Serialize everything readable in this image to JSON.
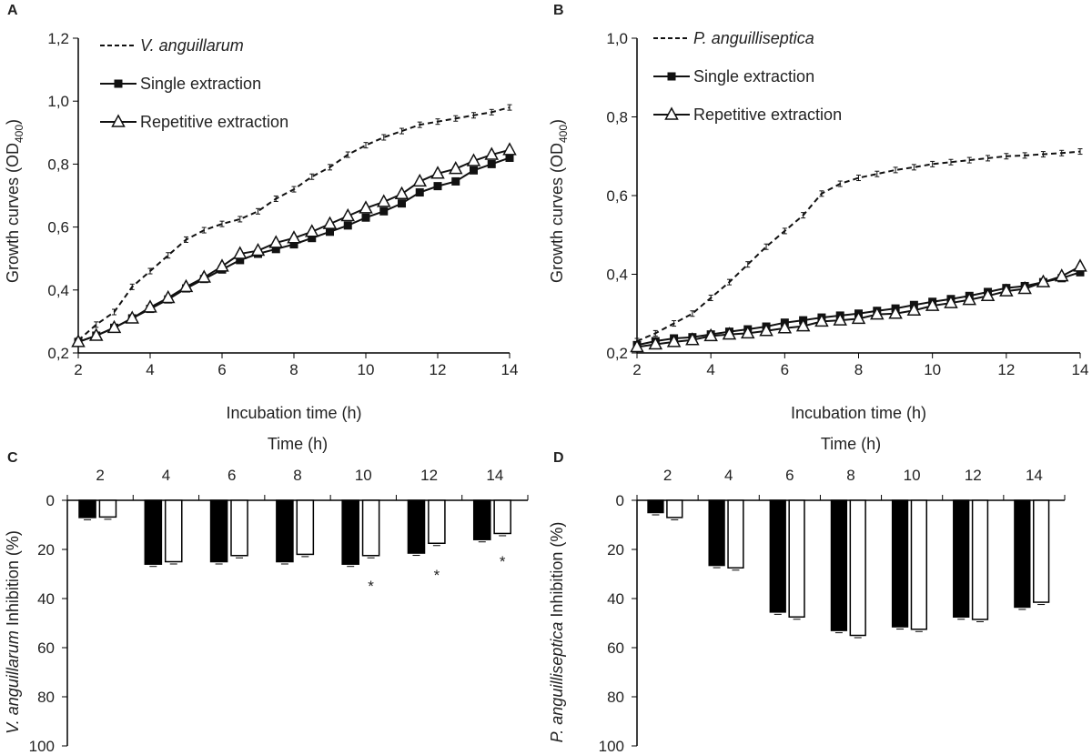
{
  "chart_data": [
    {
      "panel": "A",
      "type": "line",
      "xlabel": "Incubation time (h)",
      "ylabel": "Growth curves (OD",
      "ylabel_sub": "400",
      "ylabel_end": ")",
      "xlim": [
        2,
        14
      ],
      "ylim": [
        0.2,
        1.2
      ],
      "xticks": [
        "2",
        "4",
        "6",
        "8",
        "10",
        "12",
        "14"
      ],
      "yticks": [
        "0,2",
        "0,4",
        "0,6",
        "0,8",
        "1,0",
        "1,2"
      ],
      "legend_position": "top-left",
      "x": [
        2,
        2.5,
        3,
        3.5,
        4,
        4.5,
        5,
        5.5,
        6,
        6.5,
        7,
        7.5,
        8,
        8.5,
        9,
        9.5,
        10,
        10.5,
        11,
        11.5,
        12,
        12.5,
        13,
        13.5,
        14
      ],
      "series": [
        {
          "name": "V. anguillarum",
          "style": "dashed",
          "values": [
            0.24,
            0.29,
            0.33,
            0.41,
            0.46,
            0.51,
            0.56,
            0.59,
            0.61,
            0.625,
            0.65,
            0.69,
            0.72,
            0.76,
            0.79,
            0.83,
            0.86,
            0.885,
            0.905,
            0.925,
            0.935,
            0.945,
            0.955,
            0.965,
            0.98
          ]
        },
        {
          "name": "Single extraction",
          "style": "square",
          "values": [
            0.235,
            0.255,
            0.28,
            0.31,
            0.34,
            0.37,
            0.405,
            0.435,
            0.465,
            0.495,
            0.515,
            0.53,
            0.545,
            0.565,
            0.585,
            0.605,
            0.63,
            0.65,
            0.675,
            0.71,
            0.73,
            0.745,
            0.78,
            0.8,
            0.82
          ]
        },
        {
          "name": "Repetitive extraction",
          "style": "triangle",
          "values": [
            0.235,
            0.255,
            0.28,
            0.31,
            0.345,
            0.375,
            0.41,
            0.44,
            0.475,
            0.515,
            0.525,
            0.55,
            0.565,
            0.585,
            0.61,
            0.635,
            0.66,
            0.68,
            0.705,
            0.745,
            0.77,
            0.785,
            0.81,
            0.83,
            0.845
          ]
        }
      ]
    },
    {
      "panel": "B",
      "type": "line",
      "xlabel": "Incubation time (h)",
      "ylabel": "Growth curves (OD",
      "ylabel_sub": "400",
      "ylabel_end": ")",
      "xlim": [
        2,
        14
      ],
      "ylim": [
        0.2,
        1.0
      ],
      "xticks": [
        "2",
        "4",
        "6",
        "8",
        "10",
        "12",
        "14"
      ],
      "yticks": [
        "0,2",
        "0,4",
        "0,6",
        "0,8",
        "1,0"
      ],
      "legend_position": "top-left",
      "x": [
        2,
        2.5,
        3,
        3.5,
        4,
        4.5,
        5,
        5.5,
        6,
        6.5,
        7,
        7.5,
        8,
        8.5,
        9,
        9.5,
        10,
        10.5,
        11,
        11.5,
        12,
        12.5,
        13,
        13.5,
        14
      ],
      "series": [
        {
          "name": "P. anguilliseptica",
          "style": "dashed",
          "values": [
            0.23,
            0.25,
            0.275,
            0.3,
            0.34,
            0.38,
            0.425,
            0.47,
            0.51,
            0.55,
            0.605,
            0.63,
            0.645,
            0.655,
            0.665,
            0.672,
            0.68,
            0.685,
            0.69,
            0.695,
            0.7,
            0.702,
            0.705,
            0.708,
            0.712
          ]
        },
        {
          "name": "Single extraction",
          "style": "square",
          "values": [
            0.22,
            0.23,
            0.237,
            0.24,
            0.247,
            0.254,
            0.26,
            0.267,
            0.277,
            0.283,
            0.29,
            0.295,
            0.3,
            0.307,
            0.313,
            0.322,
            0.33,
            0.337,
            0.345,
            0.355,
            0.365,
            0.37,
            0.38,
            0.39,
            0.405
          ]
        },
        {
          "name": "Repetitive extraction",
          "style": "triangle",
          "values": [
            0.215,
            0.222,
            0.228,
            0.233,
            0.243,
            0.247,
            0.25,
            0.256,
            0.263,
            0.268,
            0.28,
            0.283,
            0.287,
            0.298,
            0.3,
            0.308,
            0.32,
            0.327,
            0.335,
            0.345,
            0.357,
            0.363,
            0.38,
            0.395,
            0.42
          ]
        }
      ]
    },
    {
      "panel": "C",
      "type": "bar",
      "xlabel": "Time (h)",
      "ylabel_italic": "V. anguillarum",
      "ylabel": " Inhibition (%)",
      "categories": [
        "2",
        "4",
        "6",
        "8",
        "10",
        "12",
        "14"
      ],
      "ylim": [
        0,
        100
      ],
      "y_inverted": true,
      "yticks": [
        "0",
        "20",
        "40",
        "60",
        "80",
        "100"
      ],
      "series": [
        {
          "style": "black",
          "values": [
            7,
            26,
            25,
            25,
            26,
            21.5,
            16
          ]
        },
        {
          "style": "white",
          "values": [
            6.8,
            25,
            22.5,
            22,
            22.5,
            17.5,
            13.5
          ]
        }
      ],
      "significance": [
        "",
        "",
        "",
        "",
        "*",
        "*",
        "*"
      ]
    },
    {
      "panel": "D",
      "type": "bar",
      "xlabel": "Time (h)",
      "ylabel_italic": "P. anguilliseptica",
      "ylabel": " Inhibition (%)",
      "categories": [
        "2",
        "4",
        "6",
        "8",
        "10",
        "12",
        "14"
      ],
      "ylim": [
        0,
        100
      ],
      "y_inverted": true,
      "yticks": [
        "0",
        "20",
        "40",
        "60",
        "80",
        "100"
      ],
      "series": [
        {
          "style": "black",
          "values": [
            5,
            26.5,
            45.5,
            53,
            51.5,
            47.5,
            43.5
          ]
        },
        {
          "style": "white",
          "values": [
            7,
            27.5,
            47.5,
            55,
            52.5,
            48.5,
            41.5
          ]
        }
      ],
      "significance": [
        "",
        "",
        "",
        "",
        "",
        "",
        ""
      ]
    }
  ]
}
